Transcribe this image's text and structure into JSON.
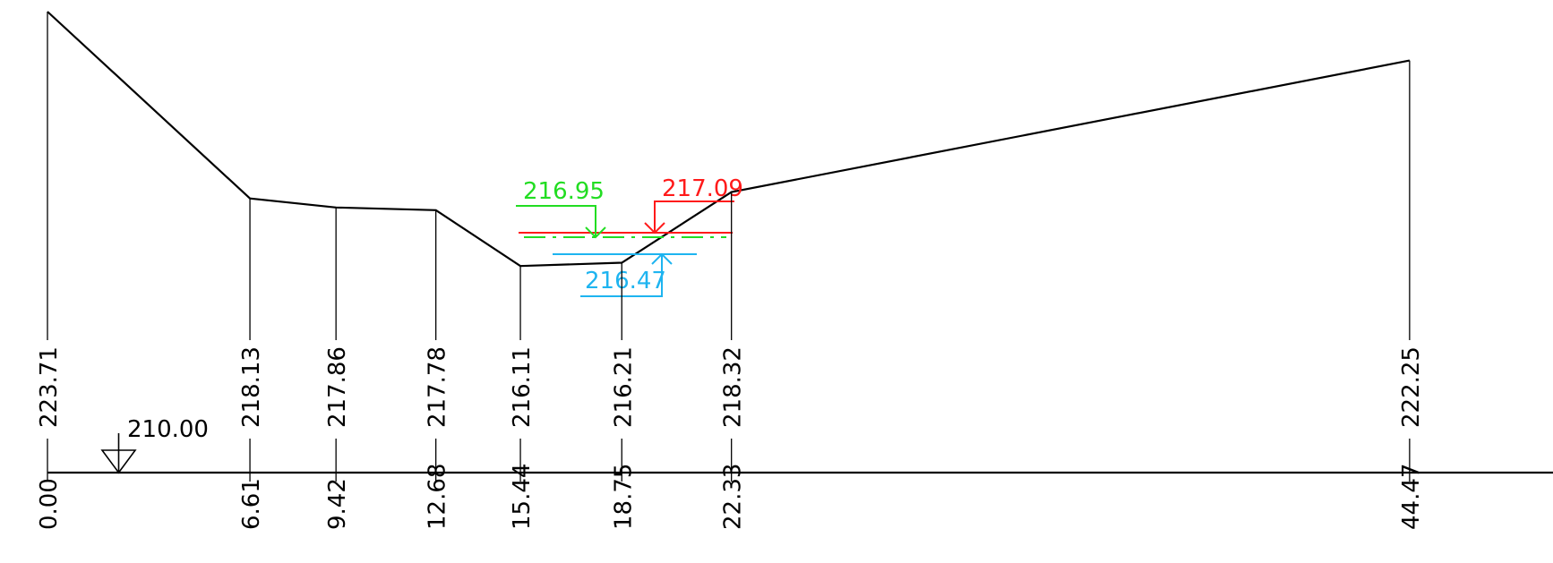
{
  "datum_label": "210.00",
  "profile": {
    "points": [
      {
        "station": 0.0,
        "elevation": 223.71,
        "station_label": "0.00",
        "elevation_label": "223.71"
      },
      {
        "station": 6.61,
        "elevation": 218.13,
        "station_label": "6.61",
        "elevation_label": "218.13"
      },
      {
        "station": 9.42,
        "elevation": 217.86,
        "station_label": "9.42",
        "elevation_label": "217.86"
      },
      {
        "station": 12.68,
        "elevation": 217.78,
        "station_label": "12.68",
        "elevation_label": "217.78"
      },
      {
        "station": 15.44,
        "elevation": 216.11,
        "station_label": "15.44",
        "elevation_label": "216.11"
      },
      {
        "station": 18.75,
        "elevation": 216.21,
        "station_label": "18.75",
        "elevation_label": "216.21"
      },
      {
        "station": 22.33,
        "elevation": 218.32,
        "station_label": "22.33",
        "elevation_label": "218.32"
      },
      {
        "station": 44.47,
        "elevation": 222.25,
        "station_label": "44.47",
        "elevation_label": "222.25"
      }
    ]
  },
  "water_levels": [
    {
      "key": "red",
      "label": "217.09",
      "elevation": 217.09,
      "color": "#ff1a1a",
      "style": "solid"
    },
    {
      "key": "green",
      "label": "216.95",
      "elevation": 216.95,
      "color": "#22dd22",
      "style": "dash-dot"
    },
    {
      "key": "blue",
      "label": "216.47",
      "elevation": 216.47,
      "color": "#1eb4f0",
      "style": "solid"
    }
  ]
}
